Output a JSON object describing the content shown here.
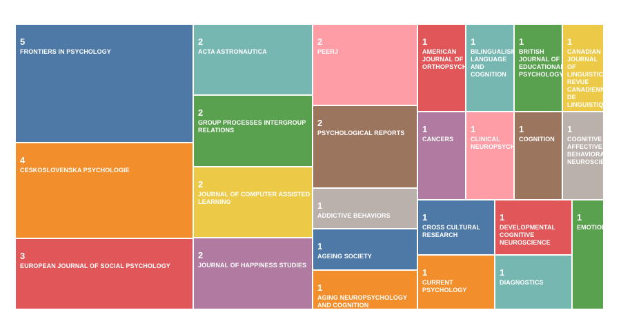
{
  "chart_data": {
    "type": "treemap",
    "items": [
      {
        "label": "FRONTIERS IN PSYCHOLOGY",
        "value": 5,
        "color": "#4e79a7"
      },
      {
        "label": "CESKOSLOVENSKA PSYCHOLOGIE",
        "value": 4,
        "color": "#f28e2b"
      },
      {
        "label": "EUROPEAN JOURNAL OF SOCIAL PSYCHOLOGY",
        "value": 3,
        "color": "#e15759"
      },
      {
        "label": "ACTA ASTRONAUTICA",
        "value": 2,
        "color": "#76b7b2"
      },
      {
        "label": "GROUP PROCESSES INTERGROUP RELATIONS",
        "value": 2,
        "color": "#59a14f"
      },
      {
        "label": "JOURNAL OF COMPUTER ASSISTED LEARNING",
        "value": 2,
        "color": "#edc948"
      },
      {
        "label": "JOURNAL OF HAPPINESS STUDIES",
        "value": 2,
        "color": "#b07aa1"
      },
      {
        "label": "PEERJ",
        "value": 2,
        "color": "#ff9da7"
      },
      {
        "label": "PSYCHOLOGICAL REPORTS",
        "value": 2,
        "color": "#9c755f"
      },
      {
        "label": "ADDICTIVE BEHAVIORS",
        "value": 1,
        "color": "#bab0ac"
      },
      {
        "label": "AGEING SOCIETY",
        "value": 1,
        "color": "#4e79a7"
      },
      {
        "label": "AGING NEUROPSYCHOLOGY AND COGNITION",
        "value": 1,
        "color": "#f28e2b"
      },
      {
        "label": "AMERICAN JOURNAL OF ORTHOPSYCHIATRY",
        "value": 1,
        "color": "#e15759"
      },
      {
        "label": "BILINGUALISM LANGUAGE AND COGNITION",
        "value": 1,
        "color": "#76b7b2"
      },
      {
        "label": "BRITISH JOURNAL OF EDUCATIONAL PSYCHOLOGY",
        "value": 1,
        "color": "#59a14f"
      },
      {
        "label": "CANADIAN JOURNAL OF LINGUISTICS REVUE CANADIENNE DE LINGUISTIQUE",
        "value": 1,
        "color": "#edc948"
      },
      {
        "label": "CANCERS",
        "value": 1,
        "color": "#b07aa1"
      },
      {
        "label": "CLINICAL NEUROPSYCHOLOGIST",
        "value": 1,
        "color": "#ff9da7"
      },
      {
        "label": "COGNITION",
        "value": 1,
        "color": "#9c755f"
      },
      {
        "label": "COGNITIVE AFFECTIVE BEHAVIORAL NEUROSCIENCE",
        "value": 1,
        "color": "#bab0ac"
      },
      {
        "label": "CROSS CULTURAL RESEARCH",
        "value": 1,
        "color": "#4e79a7"
      },
      {
        "label": "CURRENT PSYCHOLOGY",
        "value": 1,
        "color": "#f28e2b"
      },
      {
        "label": "DEVELOPMENTAL COGNITIVE NEUROSCIENCE",
        "value": 1,
        "color": "#e15759"
      },
      {
        "label": "DIAGNOSTICS",
        "value": 1,
        "color": "#76b7b2"
      },
      {
        "label": "EMOTION",
        "value": 1,
        "color": "#59a14f"
      }
    ]
  }
}
